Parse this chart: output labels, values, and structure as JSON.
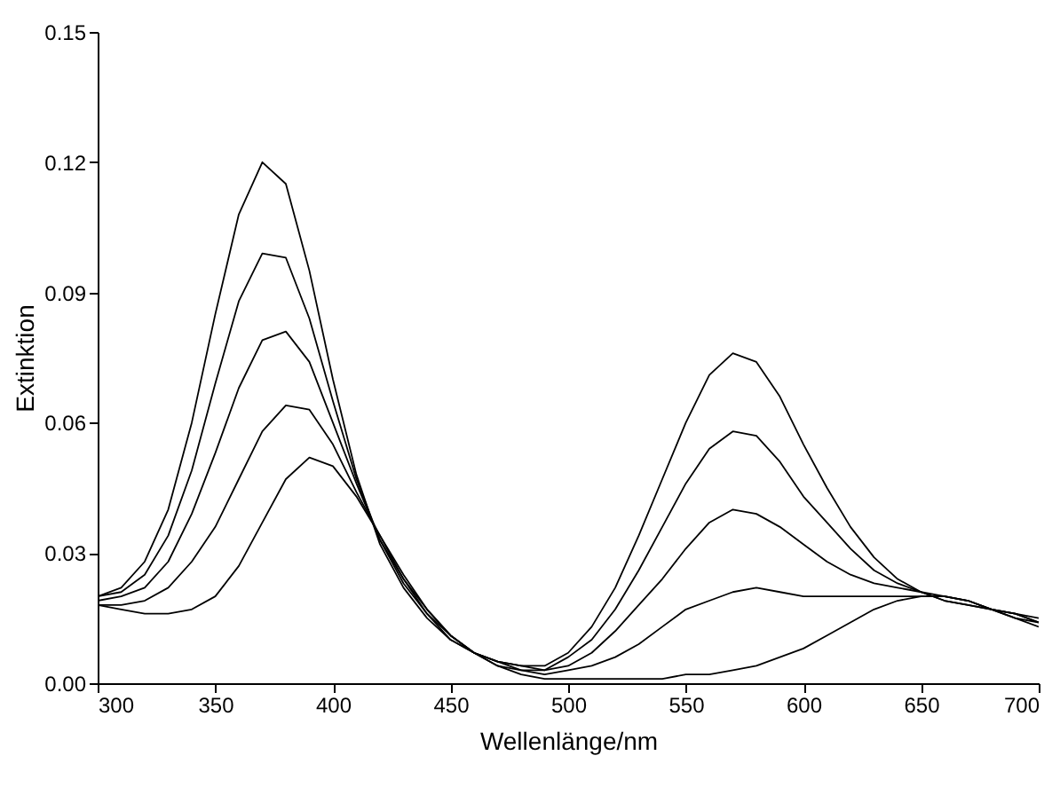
{
  "chart_data": {
    "type": "line",
    "xlabel": "Wellenlänge/nm",
    "ylabel": "Extinktion",
    "x": [
      300,
      310,
      320,
      330,
      340,
      350,
      360,
      370,
      380,
      390,
      400,
      410,
      420,
      430,
      440,
      450,
      460,
      470,
      480,
      490,
      500,
      510,
      520,
      530,
      540,
      550,
      560,
      570,
      580,
      590,
      600,
      610,
      620,
      630,
      640,
      650,
      660,
      670,
      680,
      690,
      700
    ],
    "series": [
      {
        "color": "#000000",
        "values": [
          0.018,
          0.017,
          0.016,
          0.016,
          0.017,
          0.02,
          0.027,
          0.037,
          0.047,
          0.052,
          0.05,
          0.043,
          0.034,
          0.025,
          0.017,
          0.011,
          0.007,
          0.004,
          0.002,
          0.001,
          0.001,
          0.001,
          0.001,
          0.001,
          0.001,
          0.002,
          0.002,
          0.003,
          0.004,
          0.006,
          0.008,
          0.011,
          0.014,
          0.017,
          0.019,
          0.02,
          0.02,
          0.019,
          0.017,
          0.015,
          0.013
        ]
      },
      {
        "color": "#000000",
        "values": [
          0.018,
          0.018,
          0.019,
          0.022,
          0.028,
          0.036,
          0.047,
          0.058,
          0.064,
          0.063,
          0.055,
          0.044,
          0.034,
          0.024,
          0.017,
          0.011,
          0.007,
          0.004,
          0.003,
          0.002,
          0.003,
          0.004,
          0.006,
          0.009,
          0.013,
          0.017,
          0.019,
          0.021,
          0.022,
          0.021,
          0.02,
          0.02,
          0.02,
          0.02,
          0.02,
          0.02,
          0.02,
          0.019,
          0.017,
          0.015,
          0.014
        ]
      },
      {
        "color": "#000000",
        "values": [
          0.019,
          0.02,
          0.022,
          0.028,
          0.039,
          0.053,
          0.068,
          0.079,
          0.081,
          0.074,
          0.06,
          0.046,
          0.033,
          0.024,
          0.016,
          0.011,
          0.007,
          0.005,
          0.003,
          0.003,
          0.004,
          0.007,
          0.012,
          0.018,
          0.024,
          0.031,
          0.037,
          0.04,
          0.039,
          0.036,
          0.032,
          0.028,
          0.025,
          0.023,
          0.022,
          0.021,
          0.02,
          0.019,
          0.017,
          0.016,
          0.014
        ]
      },
      {
        "color": "#000000",
        "values": [
          0.02,
          0.021,
          0.025,
          0.034,
          0.049,
          0.069,
          0.088,
          0.099,
          0.098,
          0.084,
          0.065,
          0.047,
          0.033,
          0.023,
          0.016,
          0.01,
          0.007,
          0.005,
          0.004,
          0.003,
          0.006,
          0.01,
          0.017,
          0.026,
          0.036,
          0.046,
          0.054,
          0.058,
          0.057,
          0.051,
          0.043,
          0.037,
          0.031,
          0.026,
          0.023,
          0.021,
          0.019,
          0.018,
          0.017,
          0.016,
          0.014
        ]
      },
      {
        "color": "#000000",
        "values": [
          0.02,
          0.022,
          0.028,
          0.04,
          0.06,
          0.085,
          0.108,
          0.12,
          0.115,
          0.095,
          0.07,
          0.048,
          0.032,
          0.022,
          0.015,
          0.01,
          0.007,
          0.005,
          0.004,
          0.004,
          0.007,
          0.013,
          0.022,
          0.034,
          0.047,
          0.06,
          0.071,
          0.076,
          0.074,
          0.066,
          0.055,
          0.045,
          0.036,
          0.029,
          0.024,
          0.021,
          0.019,
          0.018,
          0.017,
          0.016,
          0.015
        ]
      }
    ],
    "xlim": [
      300,
      700
    ],
    "ylim": [
      0,
      0.15
    ],
    "xticks": [
      300,
      350,
      400,
      450,
      500,
      550,
      600,
      650,
      700
    ],
    "yticks": [
      {
        "value": 0,
        "label": "0.00"
      },
      {
        "value": 0.03,
        "label": "0.03"
      },
      {
        "value": 0.06,
        "label": "0.06"
      },
      {
        "value": 0.09,
        "label": "0.09"
      },
      {
        "value": 0.12,
        "label": "0.12"
      },
      {
        "value": 0.15,
        "label": "0.15"
      }
    ]
  }
}
